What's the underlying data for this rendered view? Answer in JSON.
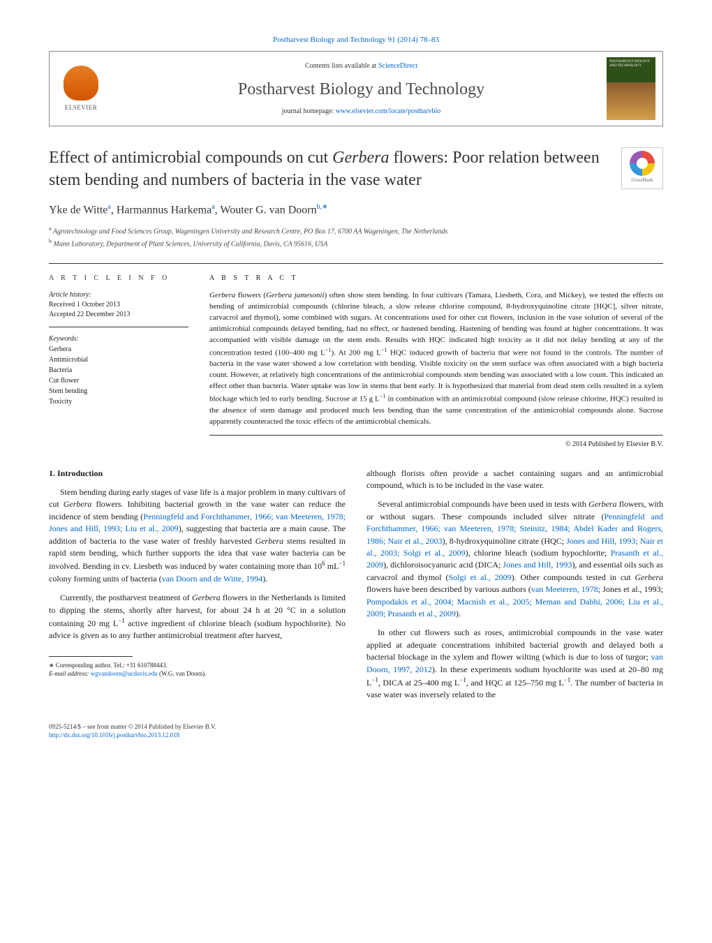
{
  "header": {
    "citation": "Postharvest Biology and Technology 91 (2014) 78–83",
    "contents_prefix": "Contents lists available at ",
    "contents_link": "ScienceDirect",
    "journal_title": "Postharvest Biology and Technology",
    "homepage_prefix": "journal homepage: ",
    "homepage_link": "www.elsevier.com/locate/postharvbio",
    "elsevier_label": "ELSEVIER",
    "cover_text": "POSTHARVEST BIOLOGY AND TECHNOLOGY",
    "crossmark_label": "CrossMark"
  },
  "article": {
    "title_pre": "Effect of antimicrobial compounds on cut ",
    "title_em": "Gerbera",
    "title_post": " flowers: Poor relation between stem bending and numbers of bacteria in the vase water",
    "authors_html": "Yke de Witte",
    "author1_sup": "a",
    "author2": "Harmannus Harkema",
    "author2_sup": "a",
    "author3": "Wouter G. van Doorn",
    "author3_sup": "b,∗",
    "affiliations": {
      "a_sup": "a",
      "a": " Agrotechnology and Food Sciences Group, Wageningen University and Research Centre, PO Box 17, 6700 AA Wageningen, The Netherlands",
      "b_sup": "b",
      "b": " Mann Laboratory, Department of Plant Sciences, University of California, Davis, CA 95616, USA"
    }
  },
  "info": {
    "heading": "a r t i c l e   i n f o",
    "history_label": "Article history:",
    "received": "Received 1 October 2013",
    "accepted": "Accepted 22 December 2013",
    "keywords_label": "Keywords:",
    "keywords": [
      "Gerbera",
      "Antimicrobial",
      "Bacteria",
      "Cut flower",
      "Stem bending",
      "Toxicity"
    ]
  },
  "abstract": {
    "heading": "a b s t r a c t",
    "body_parts": [
      {
        "t": "em",
        "v": "Gerbera"
      },
      {
        "t": "",
        "v": " flowers ("
      },
      {
        "t": "em",
        "v": "Gerbera jamesonii"
      },
      {
        "t": "",
        "v": ") often show stem bending. In four cultivars (Tamara, Liesbeth, Cora, and Mickey), we tested the effects on bending of antimicrobial compounds (chlorine bleach, a slow release chlorine compound, 8-hydroxyquinoline citrate [HQC], silver nitrate, carvacrol and thymol), some combined with sugars. At concentrations used for other cut flowers, inclusion in the vase solution of several of the antimicrobial compounds delayed bending, had no effect, or hastened bending. Hastening of bending was found at higher concentrations. It was accompanied with visible damage on the stem ends. Results with HQC indicated high toxicity as it did not delay bending at any of the concentration tested (100–400 mg L"
      },
      {
        "t": "sup",
        "v": "−1"
      },
      {
        "t": "",
        "v": "). At 200 mg L"
      },
      {
        "t": "sup",
        "v": "−1"
      },
      {
        "t": "",
        "v": " HQC induced growth of bacteria that were not found in the controls. The number of bacteria in the vase water showed a low correlation with bending. Visible toxicity on the stem surface was often associated with a high bacteria count. However, at relatively high concentrations of the antimicrobial compounds stem bending was associated with a low count. This indicated an effect other than bacteria. Water uptake was low in stems that bent early. It is hypothesized that material from dead stem cells resulted in a xylem blockage which led to early bending. Sucrose at 15 g L"
      },
      {
        "t": "sup",
        "v": "−1"
      },
      {
        "t": "",
        "v": " in combination with an antimicrobial compound (slow release chlorine, HQC) resulted in the absence of stem damage and produced much less bending than the same concentration of the antimicrobial compounds alone. Sucrose apparently counteracted the toxic effects of the antimicrobial chemicals."
      }
    ],
    "copyright": "© 2014 Published by Elsevier B.V."
  },
  "body": {
    "section_heading": "1. Introduction",
    "col1": {
      "p1": [
        {
          "t": "",
          "v": "Stem bending during early stages of vase life is a major problem in many cultivars of cut "
        },
        {
          "t": "em",
          "v": "Gerbera"
        },
        {
          "t": "",
          "v": " flowers. Inhibiting bacterial growth in the vase water can reduce the incidence of stem bending ("
        },
        {
          "t": "a",
          "v": "Penningfeld and Forchthammer, 1966; van Meeteren, 1978; Jones and Hill, 1993; Liu et al., 2009"
        },
        {
          "t": "",
          "v": "), suggesting that bacteria are a main cause. The addition of bacteria to the vase water of freshly harvested "
        },
        {
          "t": "em",
          "v": "Gerbera"
        },
        {
          "t": "",
          "v": " stems resulted in rapid stem bending, which further supports the idea that vase water bacteria can be involved. Bending in cv. Liesbeth was induced by water containing more than 10"
        },
        {
          "t": "sup",
          "v": "6"
        },
        {
          "t": "",
          "v": " mL"
        },
        {
          "t": "sup",
          "v": "−1"
        },
        {
          "t": "",
          "v": " colony forming units of bacteria ("
        },
        {
          "t": "a",
          "v": "van Doorn and de Witte, 1994"
        },
        {
          "t": "",
          "v": ")."
        }
      ],
      "p2": [
        {
          "t": "",
          "v": "Currently, the postharvest treatment of "
        },
        {
          "t": "em",
          "v": "Gerbera"
        },
        {
          "t": "",
          "v": " flowers in the Netherlands is limited to dipping the stems, shortly after harvest, for about 24 h at 20 °C in a solution containing 20 mg L"
        },
        {
          "t": "sup",
          "v": "−1"
        },
        {
          "t": "",
          "v": " active ingredient of chlorine bleach (sodium hypochlorite). No advice is given as to any further antimicrobial treatment after harvest,"
        }
      ]
    },
    "col2": {
      "p1": [
        {
          "t": "",
          "v": "although florists often provide a sachet containing sugars and an antimicrobial compound, which is to be included in the vase water."
        }
      ],
      "p2": [
        {
          "t": "",
          "v": "Several antimicrobial compounds have been used in tests with "
        },
        {
          "t": "em",
          "v": "Gerbera"
        },
        {
          "t": "",
          "v": " flowers, with or without sugars. These compounds included silver nitrate ("
        },
        {
          "t": "a",
          "v": "Penningfeld and Forchthammer, 1966; van Meeteren, 1978; Steinitz, 1984; Abdel Kader and Rogers, 1986; Nair et al., 2003"
        },
        {
          "t": "",
          "v": "), 8-hydroxyquinoline citrate (HQC; "
        },
        {
          "t": "a",
          "v": "Jones and Hill, 1993; Nair et al., 2003; Solgi et al., 2009"
        },
        {
          "t": "",
          "v": "), chlorine bleach (sodium hypochlorite; "
        },
        {
          "t": "a",
          "v": "Prasanth et al., 2009"
        },
        {
          "t": "",
          "v": "), dichloroisocyanuric acid (DICA; "
        },
        {
          "t": "a",
          "v": "Jones and Hill, 1993"
        },
        {
          "t": "",
          "v": "), and essential oils such as carvacrol and thymol ("
        },
        {
          "t": "a",
          "v": "Solgi et al., 2009"
        },
        {
          "t": "",
          "v": "). Other compounds tested in cut "
        },
        {
          "t": "em",
          "v": "Gerbera"
        },
        {
          "t": "",
          "v": " flowers have been described by various authors ("
        },
        {
          "t": "a",
          "v": "van Meeteren, 1978"
        },
        {
          "t": "",
          "v": "; Jones et al., 1993; "
        },
        {
          "t": "a",
          "v": "Pompodakis et al., 2004; Macnish et al., 2005; Meman and Dabhi, 2006; Liu et al., 2009; Prasanth et al., 2009"
        },
        {
          "t": "",
          "v": ")."
        }
      ],
      "p3": [
        {
          "t": "",
          "v": "In other cut flowers such as roses, antimicrobial compounds in the vase water applied at adequate concentrations inhibited bacterial growth and delayed both a bacterial blockage in the xylem and flower wilting (which is due to loss of turgor; "
        },
        {
          "t": "a",
          "v": "van Doorn, 1997, 2012"
        },
        {
          "t": "",
          "v": "). In these experiments sodium hyochlorite was used at 20–80 mg L"
        },
        {
          "t": "sup",
          "v": "−1"
        },
        {
          "t": "",
          "v": ", DICA at 25–400 mg L"
        },
        {
          "t": "sup",
          "v": "−1"
        },
        {
          "t": "",
          "v": ", and HQC at 125–750 mg L"
        },
        {
          "t": "sup",
          "v": "−1"
        },
        {
          "t": "",
          "v": ". The number of bacteria in vase water was inversely related to the"
        }
      ]
    }
  },
  "footnote": {
    "corr_label": "∗ Corresponding author. Tel.: +31 610788443.",
    "email_label": "E-mail address: ",
    "email": "wgvandoorn@ucdavis.edu",
    "email_who": " (W.G. van Doorn)."
  },
  "footer": {
    "line1": "0925-5214/$ – see front matter © 2014 Published by Elsevier B.V.",
    "doi": "http://dx.doi.org/10.1016/j.postharvbio.2013.12.018"
  },
  "colors": {
    "link": "#0066cc",
    "text": "#1a1a1a",
    "rule": "#333333"
  }
}
